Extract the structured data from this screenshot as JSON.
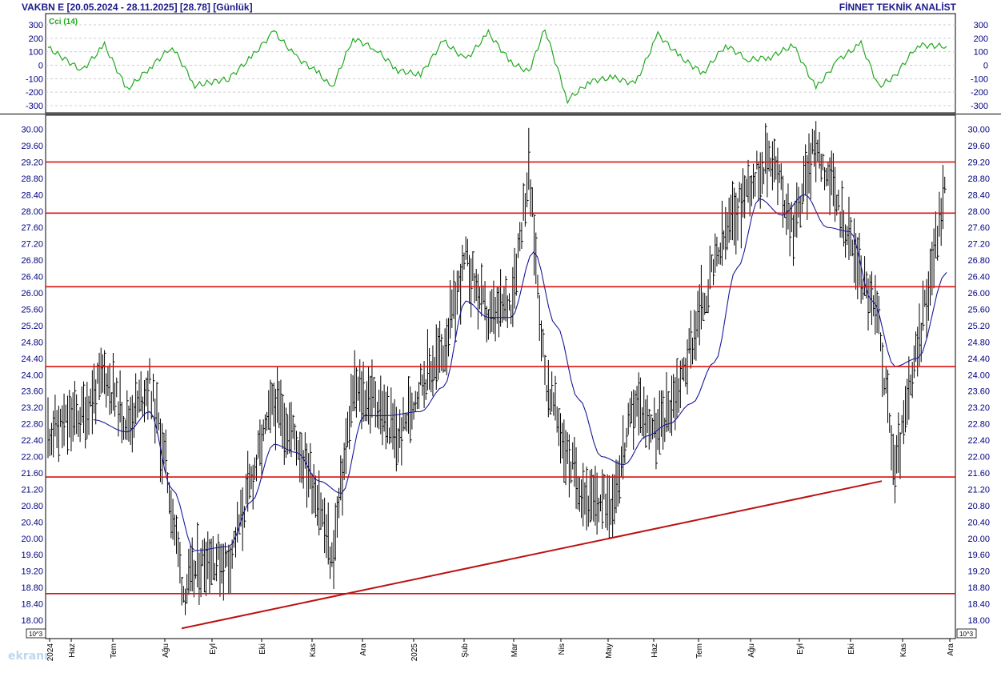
{
  "header": {
    "title": "VAKBN E  [20.05.2024 - 28.11.2025]  [28.78]  [Günlük]",
    "brand": "FİNNET TEKNİK ANALİST"
  },
  "cci_panel": {
    "label": "Cci (14)",
    "ticks": [
      300,
      200,
      100,
      0,
      -100,
      -200,
      -300
    ],
    "tick_labels": [
      "300",
      "200",
      "100",
      "0",
      "-100",
      "-200",
      "-300"
    ],
    "line_color": "#22aa22"
  },
  "price_panel": {
    "ticks": [
      "30.00",
      "29.60",
      "29.20",
      "28.80",
      "28.40",
      "28.00",
      "27.60",
      "27.20",
      "26.80",
      "26.40",
      "26.00",
      "25.60",
      "25.20",
      "24.80",
      "24.40",
      "24.00",
      "23.60",
      "23.20",
      "22.80",
      "22.40",
      "22.00",
      "21.60",
      "21.20",
      "20.80",
      "20.40",
      "20.00",
      "19.60",
      "19.20",
      "18.80",
      "18.40",
      "18.00"
    ],
    "scale_badge": "10^3",
    "scale_badge_right": "10^3",
    "support_resistance_levels": [
      29.2,
      27.95,
      26.15,
      24.2,
      21.5,
      18.65
    ],
    "trendline": {
      "from": {
        "date": "Ağu 2024",
        "price": 17.8
      },
      "to": {
        "date": "Eki 2025",
        "price": 21.4
      }
    },
    "line_color": "#dd1111",
    "ma_color": "#1a1a99"
  },
  "x_axis": {
    "labels": [
      "2024",
      "Haz",
      "Tem",
      "Ağu",
      "Eyl",
      "Eki",
      "Kas",
      "Ara",
      "2025",
      "Şub",
      "Mar",
      "Nis",
      "May",
      "Haz",
      "Tem",
      "Ağu",
      "Eyl",
      "Eki",
      "Kas",
      "Ara"
    ]
  },
  "chart_data": {
    "type": "line",
    "title": "",
    "xlabel": "",
    "ylabel": "",
    "ylim": [
      17.8,
      30.3
    ],
    "x_range": [
      "2024-05-20",
      "2025-11-28"
    ],
    "series": [
      {
        "x": [
          "2024-05-20",
          "2024-06-10",
          "2024-06-24",
          "2024-07-08",
          "2024-07-22",
          "2024-08-01",
          "2024-08-12",
          "2024-08-26",
          "2024-09-09",
          "2024-09-23",
          "2024-10-07",
          "2024-10-21",
          "2024-11-04",
          "2024-11-12",
          "2024-11-25",
          "2024-12-09",
          "2024-12-23",
          "2025-01-06",
          "2025-01-20",
          "2025-02-03",
          "2025-02-17",
          "2025-03-03",
          "2025-03-14",
          "2025-03-24",
          "2025-04-07",
          "2025-04-21",
          "2025-05-05",
          "2025-05-19",
          "2025-06-02",
          "2025-06-16",
          "2025-06-30",
          "2025-07-14",
          "2025-07-28",
          "2025-08-11",
          "2025-08-25",
          "2025-09-08",
          "2025-09-22",
          "2025-10-06",
          "2025-10-17",
          "2025-10-27",
          "2025-11-10",
          "2025-11-28"
        ],
        "values": [
          22.6,
          23.0,
          24.0,
          22.8,
          23.8,
          21.8,
          18.7,
          19.6,
          19.4,
          21.4,
          23.3,
          22.4,
          21.0,
          19.4,
          23.6,
          23.4,
          22.4,
          23.8,
          24.6,
          26.8,
          25.3,
          25.8,
          29.0,
          24.0,
          22.0,
          20.8,
          21.0,
          23.3,
          22.6,
          23.8,
          25.8,
          27.4,
          28.6,
          29.4,
          27.6,
          29.7,
          28.1,
          26.5,
          25.2,
          21.6,
          24.6,
          28.8
        ]
      },
      {
        "x": [
          "2024-06-17",
          "2024-07-08",
          "2024-07-22",
          "2024-08-05",
          "2024-08-19",
          "2024-09-09",
          "2024-09-23",
          "2024-10-07",
          "2024-10-21",
          "2024-11-04",
          "2024-11-18",
          "2024-12-02",
          "2024-12-16",
          "2025-01-06",
          "2025-01-20",
          "2025-02-03",
          "2025-02-17",
          "2025-03-03",
          "2025-03-17",
          "2025-03-31",
          "2025-04-14",
          "2025-04-28",
          "2025-05-12",
          "2025-05-26",
          "2025-06-09",
          "2025-06-23",
          "2025-07-07",
          "2025-07-21",
          "2025-08-04",
          "2025-08-18",
          "2025-09-01",
          "2025-09-15",
          "2025-09-29",
          "2025-10-13",
          "2025-10-27",
          "2025-11-10",
          "2025-11-28"
        ],
        "values": [
          22.9,
          22.6,
          23.1,
          21.2,
          19.7,
          19.8,
          20.9,
          22.3,
          22.1,
          21.4,
          21.1,
          23.0,
          23.0,
          23.1,
          23.7,
          25.8,
          25.4,
          25.4,
          27.0,
          25.2,
          23.4,
          22.0,
          21.8,
          22.5,
          22.8,
          23.3,
          24.3,
          26.6,
          28.3,
          27.9,
          28.4,
          27.6,
          27.5,
          25.8,
          24.2,
          24.4,
          26.5
        ]
      }
    ],
    "cci": {
      "x": [
        "2024-05-20",
        "2024-06-10",
        "2024-06-24",
        "2024-07-08",
        "2024-07-22",
        "2024-08-05",
        "2024-08-19",
        "2024-09-09",
        "2024-09-23",
        "2024-10-07",
        "2024-10-21",
        "2024-11-04",
        "2024-11-12",
        "2024-11-25",
        "2024-12-09",
        "2024-12-23",
        "2025-01-06",
        "2025-01-20",
        "2025-02-03",
        "2025-02-17",
        "2025-03-03",
        "2025-03-14",
        "2025-03-24",
        "2025-04-07",
        "2025-04-21",
        "2025-05-05",
        "2025-05-19",
        "2025-06-02",
        "2025-06-16",
        "2025-06-30",
        "2025-07-14",
        "2025-07-28",
        "2025-08-11",
        "2025-08-25",
        "2025-09-08",
        "2025-09-22",
        "2025-10-06",
        "2025-10-17",
        "2025-10-27",
        "2025-11-10",
        "2025-11-28"
      ],
      "values": [
        130,
        -40,
        150,
        -180,
        -20,
        140,
        -150,
        -100,
        60,
        250,
        60,
        -60,
        -170,
        200,
        120,
        -40,
        -70,
        180,
        40,
        240,
        20,
        -50,
        270,
        -260,
        -120,
        -90,
        -140,
        230,
        60,
        -60,
        150,
        40,
        60,
        150,
        -170,
        40,
        160,
        -160,
        -80,
        150,
        140
      ]
    }
  }
}
